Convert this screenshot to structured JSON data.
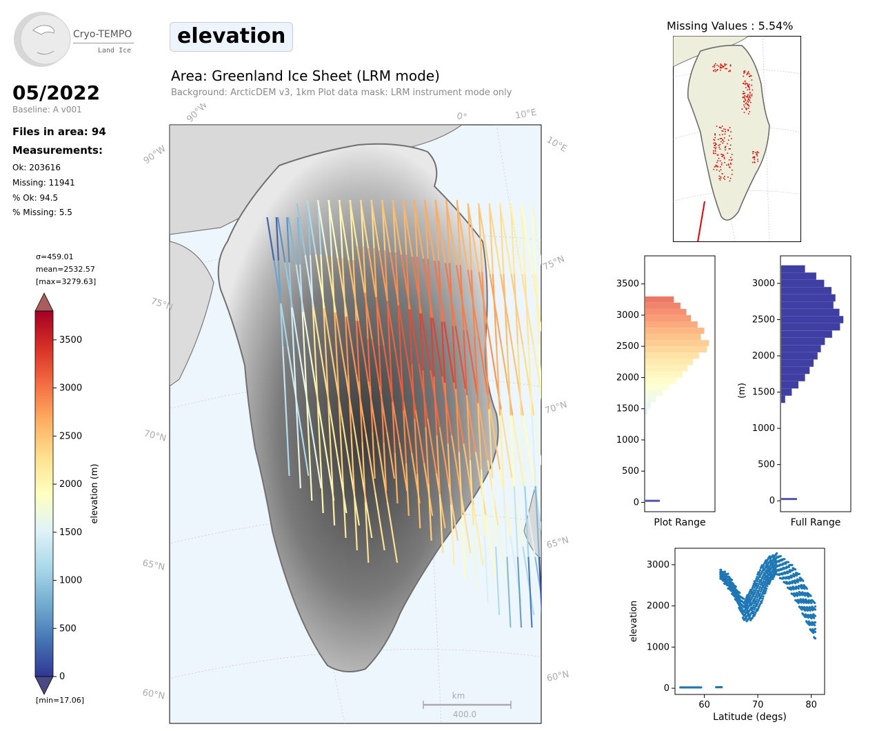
{
  "header": {
    "logo_text": "Cryo-TEMPO",
    "logo_subtext": "Land Ice",
    "parameter": "elevation",
    "area_title": "Area: Greenland Ice Sheet (LRM mode)",
    "background_note": "Background: ArcticDEM v3, 1km   Plot data mask: LRM instrument mode only"
  },
  "summary": {
    "date": "05/2022",
    "baseline": "Baseline: A v001",
    "files_in_area": "Files in area: 94",
    "measurements_label": "Measurements:",
    "ok": "Ok: 203616",
    "missing": "Missing: 11941",
    "pct_ok": "% Ok: 94.5",
    "pct_missing": "% Missing: 5.5"
  },
  "colorbar": {
    "sigma": "σ=459.01",
    "mean": "mean=2532.57",
    "max": "[max=3279.63]",
    "min": "[min=17.06]",
    "label": "elevation (m)",
    "ticks": [
      "0",
      "500",
      "1000",
      "1500",
      "2000",
      "2500",
      "3000",
      "3500"
    ],
    "range": [
      0,
      3800
    ],
    "colors": [
      "#313695",
      "#4575b4",
      "#74add1",
      "#abd9e9",
      "#e0f3f8",
      "#ffffbf",
      "#fee090",
      "#fdae61",
      "#f46d43",
      "#d73027",
      "#a50026"
    ]
  },
  "map": {
    "lat_labels_left": [
      "75°N",
      "70°N",
      "65°N",
      "60°N"
    ],
    "lat_labels_right": [
      "75°N",
      "70°N",
      "65°N",
      "60°N"
    ],
    "lon_labels_top": [
      "90°W",
      "0°",
      "10°E"
    ],
    "lon_labels_side": [
      "90°W",
      "10°E"
    ],
    "scalebar_unit": "km",
    "scalebar_value": "400.0",
    "ocean_color": "#eef6fd",
    "coast_color": "#777777"
  },
  "missing_panel": {
    "title": "Missing Values : 5.54%",
    "land_color": "#eeeedc",
    "missing_color": "#e00000"
  },
  "chart_data": [
    {
      "type": "bar",
      "orientation": "horizontal",
      "title": "",
      "xlabel": "Plot Range",
      "ylabel": "",
      "yticks": [
        0,
        500,
        1000,
        1500,
        2000,
        2500,
        3000,
        3500
      ],
      "ylim": [
        -150,
        3950
      ],
      "bins_center": [
        25,
        1450,
        1550,
        1650,
        1750,
        1850,
        1950,
        2050,
        2150,
        2250,
        2350,
        2450,
        2550,
        2650,
        2750,
        2850,
        2950,
        3050,
        3150,
        3250
      ],
      "counts": [
        2200,
        300,
        800,
        1600,
        2600,
        3600,
        4800,
        5600,
        6400,
        7200,
        8100,
        9300,
        9600,
        8400,
        8900,
        7900,
        6900,
        6200,
        5300,
        4300
      ],
      "count_max": 10000
    },
    {
      "type": "bar",
      "orientation": "horizontal",
      "title": "",
      "xlabel": "Full Range",
      "ylabel": "(m)",
      "yticks": [
        0,
        500,
        1000,
        1500,
        2000,
        2500,
        3000
      ],
      "ylim": [
        -150,
        3380
      ],
      "bins_center": [
        25,
        1400,
        1500,
        1600,
        1700,
        1800,
        1900,
        2000,
        2100,
        2200,
        2300,
        2400,
        2500,
        2600,
        2700,
        2800,
        2900,
        3000,
        3100,
        3200
      ],
      "counts": [
        2400,
        600,
        1600,
        2600,
        3600,
        4300,
        4900,
        5500,
        6000,
        6600,
        7700,
        8900,
        9400,
        8800,
        7900,
        8200,
        7600,
        6500,
        5300,
        3600
      ],
      "count_max": 10000,
      "color": "#3f3fa3"
    },
    {
      "type": "scatter",
      "title": "",
      "xlabel": "Latitude (degs)",
      "ylabel": "elevation",
      "xlim": [
        54.5,
        82.5
      ],
      "ylim": [
        -150,
        3400
      ],
      "xticks": [
        60,
        70,
        80
      ],
      "yticks": [
        0,
        1000,
        2000,
        3000
      ],
      "color": "#1f77b4",
      "clusters": [
        {
          "x_range": [
            55.5,
            59.5
          ],
          "y": 20
        },
        {
          "x_range": [
            62.2,
            63.3
          ],
          "y": 25
        }
      ],
      "band_x": [
        63.0,
        64.5,
        66.0,
        67.5,
        69.0,
        70.5,
        72.0,
        73.5,
        75.0,
        76.5,
        78.0,
        79.5,
        80.8
      ],
      "band_y_upper": [
        2850,
        2750,
        2400,
        2100,
        2450,
        2900,
        3150,
        3250,
        3100,
        2950,
        2700,
        2300,
        2000
      ],
      "band_y_lower": [
        2700,
        2450,
        2150,
        1650,
        1700,
        2050,
        2550,
        2800,
        2600,
        2300,
        1950,
        1550,
        1200
      ]
    }
  ]
}
